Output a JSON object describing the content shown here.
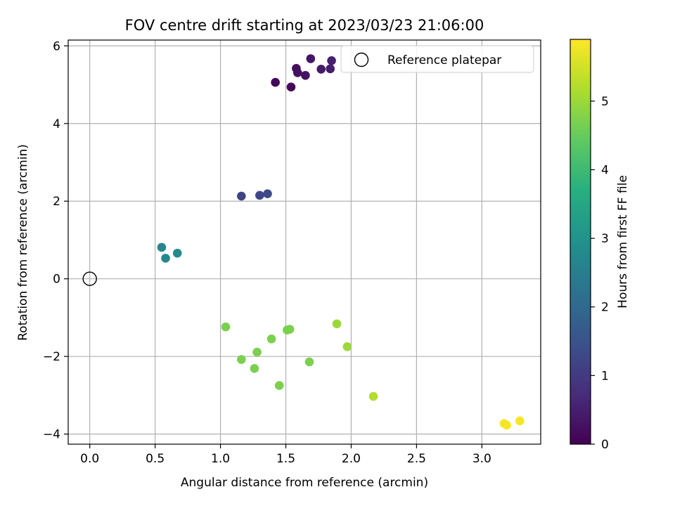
{
  "chart_data": {
    "type": "scatter",
    "title": "FOV centre drift starting at 2023/03/23 21:06:00",
    "xlabel": "Angular distance from reference (arcmin)",
    "ylabel": "Rotation from reference (arcmin)",
    "xlim": [
      -0.165,
      3.45
    ],
    "ylim": [
      -4.26,
      6.15
    ],
    "xticks": [
      0.0,
      0.5,
      1.0,
      1.5,
      2.0,
      2.5,
      3.0
    ],
    "xtick_labels": [
      "0.0",
      "0.5",
      "1.0",
      "1.5",
      "2.0",
      "2.5",
      "3.0"
    ],
    "yticks": [
      -4,
      -2,
      0,
      2,
      4,
      6
    ],
    "ytick_labels": [
      "−4",
      "−2",
      "0",
      "2",
      "4",
      "6"
    ],
    "grid": true,
    "legend": {
      "position": "top-right",
      "entries": [
        "Reference platepar"
      ]
    },
    "reference_point": {
      "x": 0.0,
      "y": 0.0
    },
    "colorbar": {
      "label": "Hours from first FF file",
      "colormap": "viridis",
      "range": [
        0,
        5.9
      ],
      "ticks": [
        0,
        1,
        2,
        3,
        4,
        5
      ],
      "tick_labels": [
        "0",
        "1",
        "2",
        "3",
        "4",
        "5"
      ]
    },
    "points": [
      {
        "x": 1.42,
        "y": 5.06,
        "hours": 0.1
      },
      {
        "x": 1.54,
        "y": 4.94,
        "hours": 0.15
      },
      {
        "x": 1.58,
        "y": 5.42,
        "hours": 0.2
      },
      {
        "x": 1.59,
        "y": 5.31,
        "hours": 0.25
      },
      {
        "x": 1.65,
        "y": 5.24,
        "hours": 0.3
      },
      {
        "x": 1.69,
        "y": 5.67,
        "hours": 0.35
      },
      {
        "x": 1.77,
        "y": 5.4,
        "hours": 0.4
      },
      {
        "x": 1.84,
        "y": 5.41,
        "hours": 0.45
      },
      {
        "x": 1.85,
        "y": 5.62,
        "hours": 0.5
      },
      {
        "x": 1.16,
        "y": 2.13,
        "hours": 1.2
      },
      {
        "x": 1.3,
        "y": 2.15,
        "hours": 1.25
      },
      {
        "x": 1.36,
        "y": 2.19,
        "hours": 1.3
      },
      {
        "x": 0.55,
        "y": 0.81,
        "hours": 2.7
      },
      {
        "x": 0.58,
        "y": 0.53,
        "hours": 2.75
      },
      {
        "x": 0.67,
        "y": 0.66,
        "hours": 2.8
      },
      {
        "x": 1.04,
        "y": -1.24,
        "hours": 4.7
      },
      {
        "x": 1.16,
        "y": -2.08,
        "hours": 4.7
      },
      {
        "x": 1.26,
        "y": -2.31,
        "hours": 4.7
      },
      {
        "x": 1.28,
        "y": -1.89,
        "hours": 4.7
      },
      {
        "x": 1.39,
        "y": -1.55,
        "hours": 4.7
      },
      {
        "x": 1.45,
        "y": -2.75,
        "hours": 4.7
      },
      {
        "x": 1.51,
        "y": -1.32,
        "hours": 4.7
      },
      {
        "x": 1.53,
        "y": -1.3,
        "hours": 4.7
      },
      {
        "x": 1.68,
        "y": -2.14,
        "hours": 4.7
      },
      {
        "x": 1.89,
        "y": -1.16,
        "hours": 5.0
      },
      {
        "x": 1.97,
        "y": -1.75,
        "hours": 5.0
      },
      {
        "x": 2.17,
        "y": -3.03,
        "hours": 5.2
      },
      {
        "x": 3.17,
        "y": -3.73,
        "hours": 5.85
      },
      {
        "x": 3.19,
        "y": -3.77,
        "hours": 5.85
      },
      {
        "x": 3.29,
        "y": -3.66,
        "hours": 5.85
      }
    ]
  }
}
